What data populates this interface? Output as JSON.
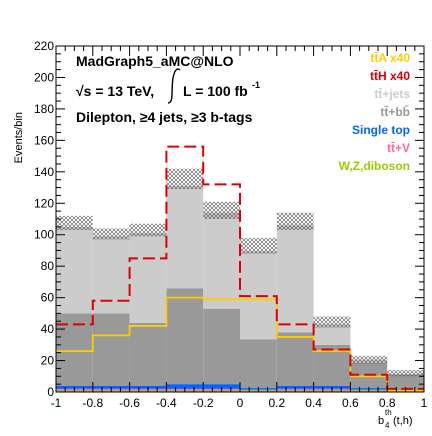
{
  "chart_data": {
    "type": "bar",
    "stacked": true,
    "ylabel": "Events/bin",
    "xlabel": "b_4^{th}(t,h)",
    "xlim": [
      -1,
      1
    ],
    "ylim": [
      0,
      220
    ],
    "bin_edges": [
      -1.0,
      -0.8,
      -0.6,
      -0.4,
      -0.2,
      0.0,
      0.2,
      0.4,
      0.6,
      0.8,
      1.0
    ],
    "x_ticks": [
      "-1",
      "-0.8",
      "-0.6",
      "-0.4",
      "-0.2",
      "0",
      "0.2",
      "0.4",
      "0.6",
      "0.8",
      "1"
    ],
    "y_ticks": [
      "0",
      "20",
      "40",
      "60",
      "80",
      "100",
      "120",
      "140",
      "160",
      "180",
      "200",
      "220"
    ],
    "annotations": {
      "generator": "MadGraph5_aMC@NLO",
      "energy": "√s = 13 TeV,",
      "lumi": "L = 100 fb",
      "lumi_sup": "-1",
      "selection": "Dilepton, ≥4 jets, ≥3 b-tags"
    },
    "stack": [
      {
        "name": "W,Z,diboson",
        "color": "#99cc00",
        "values": [
          1,
          1,
          1,
          1,
          1,
          1,
          1,
          1,
          1,
          1
        ]
      },
      {
        "name": "tt+V",
        "color": "#ff66aa",
        "values": [
          1,
          1,
          1,
          1,
          1,
          0.5,
          1,
          1,
          0.5,
          0.5
        ]
      },
      {
        "name": "Single top",
        "color": "#0066ff",
        "values": [
          2,
          2,
          2,
          3,
          3,
          1,
          2,
          2,
          1,
          0.5
        ]
      },
      {
        "name": "tt+bb",
        "color": "#999999",
        "values": [
          46,
          46,
          40,
          61,
          48,
          31,
          34,
          26,
          16,
          9
        ]
      },
      {
        "name": "tt+jets",
        "color": "#cccccc",
        "values": [
          55,
          49,
          57,
          65,
          61,
          56,
          68,
          13,
          2,
          0.5
        ]
      }
    ],
    "uncertainty_band": [
      {
        "low": 103,
        "high": 112
      },
      {
        "low": 97,
        "high": 104
      },
      {
        "low": 99,
        "high": 107
      },
      {
        "low": 129,
        "high": 142
      },
      {
        "low": 110,
        "high": 121
      },
      {
        "low": 88,
        "high": 98
      },
      {
        "low": 103,
        "high": 114
      },
      {
        "low": 41,
        "high": 48
      },
      {
        "low": 18,
        "high": 23
      },
      {
        "low": 10,
        "high": 14
      }
    ],
    "lines": [
      {
        "name": "ttA x40",
        "color": "#ffcc00",
        "dash": false,
        "values": [
          26,
          36,
          42,
          60,
          59,
          59,
          35,
          26,
          10,
          1
        ]
      },
      {
        "name": "ttH x40",
        "color": "#dd0000",
        "dash": true,
        "values": [
          43,
          58,
          85,
          156,
          132,
          61,
          43,
          27,
          11,
          2
        ]
      }
    ],
    "legend": [
      {
        "label": "tt̄A x40",
        "color": "#ffcc00"
      },
      {
        "label": "tt̄H x40",
        "color": "#dd0000"
      },
      {
        "label": "tt̄+jets",
        "color": "#cccccc"
      },
      {
        "label": "tt̄+bb̄",
        "color": "#999999"
      },
      {
        "label": "Single top",
        "color": "#0066ff"
      },
      {
        "label": "tt̄+V",
        "color": "#ff66aa"
      },
      {
        "label": "W,Z,diboson",
        "color": "#99cc00"
      }
    ],
    "legend_position": "top-right"
  }
}
